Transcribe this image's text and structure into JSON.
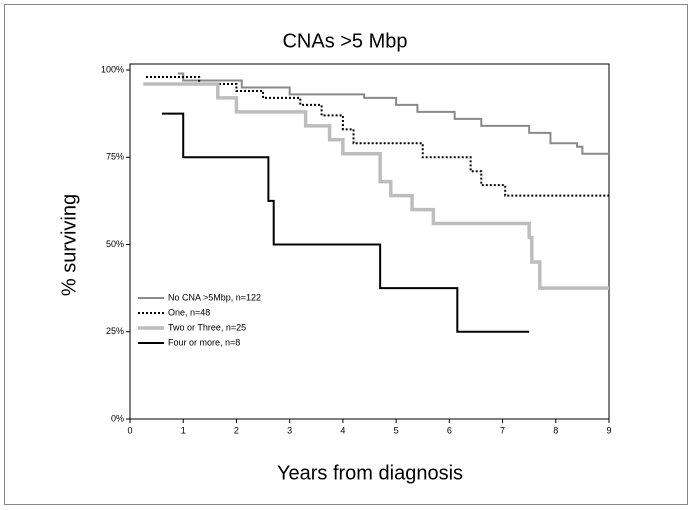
{
  "chart_data": {
    "type": "step",
    "title": "CNAs >5 Mbp",
    "xlabel": "Years from diagnosis",
    "ylabel": "% surviving",
    "xlim": [
      0,
      9
    ],
    "xticks": [
      0,
      1,
      2,
      3,
      4,
      5,
      6,
      7,
      8,
      9
    ],
    "ylim": [
      0,
      100
    ],
    "yticks": [
      {
        "value": 0,
        "label": "0%"
      },
      {
        "value": 25,
        "label": "25%"
      },
      {
        "value": 50,
        "label": "50%"
      },
      {
        "value": 75,
        "label": "75%"
      },
      {
        "value": 100,
        "label": "100%"
      }
    ],
    "legend": "lower-left",
    "series": [
      {
        "name": "No CNA >5Mbp, n=122",
        "color": "#8a8a8a",
        "style": "solid",
        "x": [
          0.9,
          1.0,
          1.0,
          2.1,
          2.1,
          3.0,
          3.0,
          4.4,
          4.4,
          5.0,
          5.0,
          5.4,
          5.4,
          6.1,
          6.1,
          6.6,
          6.6,
          7.5,
          7.5,
          7.9,
          7.9,
          8.4,
          8.4,
          8.5,
          8.5,
          9.0
        ],
        "values": [
          99,
          99,
          97,
          97,
          95,
          95,
          93,
          93,
          92,
          92,
          90,
          90,
          88,
          88,
          86,
          86,
          84,
          84,
          82,
          82,
          79,
          79,
          78,
          78,
          76,
          76
        ]
      },
      {
        "name": "One, n=48",
        "color": "#000000",
        "style": "dotted",
        "x": [
          0.3,
          1.3,
          1.3,
          2.0,
          2.0,
          2.5,
          2.5,
          3.2,
          3.2,
          3.6,
          3.6,
          4.0,
          4.0,
          4.2,
          4.2,
          5.5,
          5.5,
          6.4,
          6.4,
          6.6,
          6.6,
          7.05,
          7.05,
          9.0
        ],
        "values": [
          98,
          98,
          96,
          96,
          94,
          94,
          92,
          92,
          90,
          90,
          87,
          87,
          83,
          83,
          79,
          79,
          75,
          75,
          71,
          71,
          67,
          67,
          64,
          64
        ]
      },
      {
        "name": "Two or Three, n=25",
        "color": "#bdbdbd",
        "style": "thick",
        "x": [
          0.25,
          1.65,
          1.65,
          2.0,
          2.0,
          3.3,
          3.3,
          3.75,
          3.75,
          4.0,
          4.0,
          4.7,
          4.7,
          4.9,
          4.9,
          5.3,
          5.3,
          5.7,
          5.7,
          7.5,
          7.5,
          7.55,
          7.55,
          7.7,
          7.7,
          9.0
        ],
        "values": [
          96,
          96,
          92,
          92,
          88,
          88,
          84,
          84,
          80,
          80,
          76,
          76,
          68,
          68,
          64,
          64,
          60,
          60,
          56,
          56,
          52,
          52,
          45,
          45,
          37.5,
          37.5
        ]
      },
      {
        "name": "Four or more, n=8",
        "color": "#000000",
        "style": "solid",
        "x": [
          0.6,
          1.0,
          1.0,
          2.6,
          2.6,
          2.7,
          2.7,
          4.7,
          4.7,
          6.15,
          6.15,
          7.5
        ],
        "values": [
          87.5,
          87.5,
          75,
          75,
          62.5,
          62.5,
          50,
          50,
          37.5,
          37.5,
          25,
          25
        ]
      }
    ]
  }
}
